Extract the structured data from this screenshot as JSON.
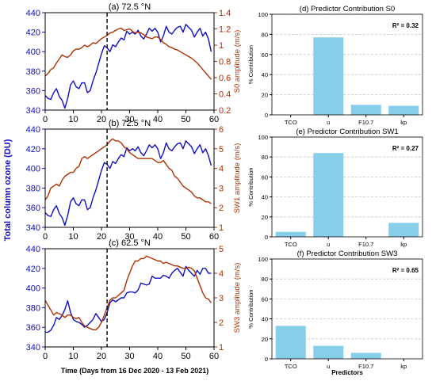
{
  "figure": {
    "ozone_axis_label": "Total column ozone (DU)",
    "time_axis_label": "Time (Days from 16 Dec 2020 - 13 Feb 2021)",
    "colors": {
      "ozone": "#1010c0",
      "wind": "#b03000",
      "bar": "#87ceeb",
      "axis_red": "#b03000",
      "axis_blue": "#1010c0"
    }
  },
  "chart_data": [
    {
      "type": "line",
      "title": "(a) 72.5 °N",
      "xlim": [
        0,
        60
      ],
      "xticks": [
        0,
        10,
        20,
        30,
        40,
        50,
        60
      ],
      "left_axis": {
        "label": "",
        "ylim": [
          340,
          440
        ],
        "ticks": [
          340,
          360,
          380,
          400,
          420,
          440
        ]
      },
      "right_axis": {
        "label": "S0 amplitude (m/s)",
        "ylim": [
          0.2,
          1.4
        ],
        "ticks": [
          0.2,
          0.4,
          0.6,
          0.8,
          1.0,
          1.2,
          1.4
        ]
      },
      "marker_line_x": 22,
      "series": [
        {
          "axis": "left",
          "color": "#1010c0",
          "x": [
            0,
            1,
            2,
            3,
            4,
            5,
            6,
            7,
            8,
            9,
            10,
            11,
            12,
            13,
            14,
            15,
            16,
            17,
            18,
            19,
            20,
            21,
            22,
            23,
            24,
            25,
            26,
            27,
            28,
            29,
            30,
            31,
            32,
            33,
            34,
            35,
            36,
            37,
            38,
            39,
            40,
            41,
            42,
            43,
            44,
            45,
            46,
            47,
            48,
            49,
            50,
            51,
            52,
            53,
            54,
            55,
            56,
            57,
            58,
            59
          ],
          "values": [
            355,
            352,
            351,
            358,
            362,
            354,
            350,
            342,
            352,
            366,
            370,
            364,
            362,
            368,
            368,
            358,
            360,
            370,
            378,
            388,
            398,
            406,
            404,
            400,
            407,
            405,
            410,
            414,
            412,
            421,
            418,
            420,
            418,
            422,
            416,
            413,
            418,
            424,
            421,
            424,
            420,
            410,
            416,
            426,
            420,
            418,
            422,
            425,
            426,
            420,
            428,
            425,
            422,
            415,
            420,
            424,
            416,
            420,
            413,
            400
          ]
        },
        {
          "axis": "right",
          "color": "#b03000",
          "x": [
            0,
            1,
            2,
            3,
            4,
            5,
            6,
            7,
            8,
            9,
            10,
            11,
            12,
            13,
            14,
            15,
            16,
            17,
            18,
            19,
            20,
            21,
            22,
            23,
            24,
            25,
            26,
            27,
            28,
            29,
            30,
            31,
            32,
            33,
            34,
            35,
            36,
            37,
            38,
            39,
            40,
            41,
            42,
            43,
            44,
            45,
            46,
            47,
            48,
            49,
            50,
            51,
            52,
            53,
            54,
            55,
            56,
            57,
            58,
            59
          ],
          "values": [
            0.62,
            0.65,
            0.7,
            0.72,
            0.78,
            0.83,
            0.88,
            0.86,
            0.85,
            0.88,
            0.93,
            0.95,
            0.95,
            0.97,
            1.0,
            0.98,
            1.0,
            1.03,
            1.02,
            1.05,
            1.08,
            1.1,
            1.12,
            1.15,
            1.16,
            1.18,
            1.2,
            1.21,
            1.18,
            1.19,
            1.2,
            1.17,
            1.15,
            1.16,
            1.15,
            1.13,
            1.1,
            1.09,
            1.08,
            1.1,
            1.1,
            1.07,
            1.03,
            1.01,
            0.98,
            0.97,
            0.95,
            0.94,
            0.92,
            0.9,
            0.88,
            0.86,
            0.84,
            0.81,
            0.78,
            0.74,
            0.7,
            0.66,
            0.62,
            0.58
          ]
        }
      ]
    },
    {
      "type": "line",
      "title": "(b) 72.5 °N",
      "xlim": [
        0,
        60
      ],
      "xticks": [
        0,
        10,
        20,
        30,
        40,
        50,
        60
      ],
      "left_axis": {
        "label": "",
        "ylim": [
          340,
          440
        ],
        "ticks": [
          340,
          360,
          380,
          400,
          420,
          440
        ]
      },
      "right_axis": {
        "label": "SW1 amplitude (m/s)",
        "ylim": [
          1,
          6
        ],
        "ticks": [
          1,
          2,
          3,
          4,
          5,
          6
        ]
      },
      "marker_line_x": 22,
      "series": [
        {
          "axis": "left",
          "color": "#1010c0",
          "x": [
            0,
            1,
            2,
            3,
            4,
            5,
            6,
            7,
            8,
            9,
            10,
            11,
            12,
            13,
            14,
            15,
            16,
            17,
            18,
            19,
            20,
            21,
            22,
            23,
            24,
            25,
            26,
            27,
            28,
            29,
            30,
            31,
            32,
            33,
            34,
            35,
            36,
            37,
            38,
            39,
            40,
            41,
            42,
            43,
            44,
            45,
            46,
            47,
            48,
            49,
            50,
            51,
            52,
            53,
            54,
            55,
            56,
            57,
            58,
            59
          ],
          "values": [
            355,
            352,
            351,
            358,
            362,
            354,
            350,
            342,
            352,
            366,
            370,
            364,
            362,
            368,
            368,
            358,
            360,
            370,
            378,
            388,
            398,
            406,
            404,
            400,
            407,
            405,
            410,
            414,
            412,
            421,
            418,
            420,
            418,
            422,
            416,
            413,
            418,
            424,
            421,
            424,
            420,
            410,
            416,
            426,
            420,
            418,
            422,
            425,
            426,
            420,
            428,
            425,
            422,
            415,
            420,
            424,
            416,
            420,
            413,
            403
          ]
        },
        {
          "axis": "right",
          "color": "#b03000",
          "x": [
            0,
            1,
            2,
            3,
            4,
            5,
            6,
            7,
            8,
            9,
            10,
            11,
            12,
            13,
            14,
            15,
            16,
            17,
            18,
            19,
            20,
            21,
            22,
            23,
            24,
            25,
            26,
            27,
            28,
            29,
            30,
            31,
            32,
            33,
            34,
            35,
            36,
            37,
            38,
            39,
            40,
            41,
            42,
            43,
            44,
            45,
            46,
            47,
            48,
            49,
            50,
            51,
            52,
            53,
            54,
            55,
            56,
            57,
            58,
            59
          ],
          "values": [
            2.4,
            2.6,
            3.0,
            3.1,
            3.2,
            3.1,
            3.4,
            3.6,
            3.7,
            3.8,
            3.8,
            4.0,
            4.1,
            4.5,
            4.6,
            4.5,
            4.6,
            4.7,
            4.8,
            4.9,
            5.0,
            5.1,
            5.2,
            5.4,
            5.5,
            5.4,
            5.4,
            5.3,
            5.1,
            5.0,
            4.8,
            4.7,
            4.6,
            4.5,
            4.5,
            4.5,
            4.5,
            4.5,
            4.5,
            4.4,
            4.3,
            4.3,
            4.4,
            4.2,
            4.0,
            3.9,
            3.6,
            3.5,
            3.3,
            3.1,
            3.0,
            2.9,
            2.8,
            2.6,
            2.5,
            2.5,
            2.4,
            2.3,
            2.3,
            2.2
          ]
        }
      ]
    },
    {
      "type": "line",
      "title": "(c) 62.5 °N",
      "xlim": [
        0,
        60
      ],
      "xticks": [
        0,
        10,
        20,
        30,
        40,
        50,
        60
      ],
      "xlabel": "Time (Days from 16 Dec 2020 - 13 Feb 2021)",
      "left_axis": {
        "label": "",
        "ylim": [
          340,
          440
        ],
        "ticks": [
          340,
          360,
          380,
          400,
          420,
          440
        ]
      },
      "right_axis": {
        "label": "SW3 amplitude (m/s)",
        "ylim": [
          1,
          5
        ],
        "ticks": [
          1,
          2,
          3,
          4,
          5
        ]
      },
      "marker_line_x": 22,
      "series": [
        {
          "axis": "left",
          "color": "#1010c0",
          "x": [
            0,
            1,
            2,
            3,
            4,
            5,
            6,
            7,
            8,
            9,
            10,
            11,
            12,
            13,
            14,
            15,
            16,
            17,
            18,
            19,
            20,
            21,
            22,
            23,
            24,
            25,
            26,
            27,
            28,
            29,
            30,
            31,
            32,
            33,
            34,
            35,
            36,
            37,
            38,
            39,
            40,
            41,
            42,
            43,
            44,
            45,
            46,
            47,
            48,
            49,
            50,
            51,
            52,
            53,
            54,
            55,
            56,
            57,
            58,
            59
          ],
          "values": [
            355,
            355,
            357,
            362,
            370,
            368,
            372,
            378,
            387,
            375,
            368,
            366,
            365,
            363,
            360,
            362,
            365,
            368,
            374,
            370,
            366,
            368,
            375,
            385,
            388,
            386,
            388,
            390,
            390,
            395,
            396,
            396,
            395,
            398,
            405,
            404,
            403,
            404,
            412,
            410,
            410,
            410,
            413,
            412,
            410,
            415,
            418,
            420,
            416,
            412,
            422,
            418,
            415,
            412,
            418,
            414,
            420,
            420,
            415,
            415
          ]
        },
        {
          "axis": "right",
          "color": "#b03000",
          "x": [
            0,
            1,
            2,
            3,
            4,
            5,
            6,
            7,
            8,
            9,
            10,
            11,
            12,
            13,
            14,
            15,
            16,
            17,
            18,
            19,
            20,
            21,
            22,
            23,
            24,
            25,
            26,
            27,
            28,
            29,
            30,
            31,
            32,
            33,
            34,
            35,
            36,
            37,
            38,
            39,
            40,
            41,
            42,
            43,
            44,
            45,
            46,
            47,
            48,
            49,
            50,
            51,
            52,
            53,
            54,
            55,
            56,
            57,
            58,
            59
          ],
          "values": [
            2.9,
            2.7,
            2.5,
            2.3,
            2.4,
            2.35,
            2.3,
            2.2,
            2.3,
            2.3,
            2.2,
            2.15,
            2.2,
            2.0,
            1.85,
            1.8,
            1.75,
            1.7,
            1.7,
            1.8,
            2.0,
            2.3,
            2.6,
            2.9,
            3.0,
            3.0,
            3.1,
            3.2,
            3.3,
            3.7,
            4.0,
            4.3,
            4.5,
            4.5,
            4.6,
            4.6,
            4.7,
            4.65,
            4.6,
            4.55,
            4.5,
            4.5,
            4.4,
            4.45,
            4.4,
            4.35,
            4.3,
            4.3,
            4.25,
            4.2,
            4.2,
            4.25,
            4.2,
            4.1,
            3.8,
            3.5,
            3.2,
            3.0,
            2.95,
            2.8
          ]
        }
      ]
    },
    {
      "type": "bar",
      "title": "(d) Predictor Contribution S0",
      "categories": [
        "TCO",
        "u",
        "F10.7",
        "kp"
      ],
      "values": [
        0,
        77,
        10,
        9
      ],
      "ylabel": "% Contribution",
      "ylim": [
        0,
        100
      ],
      "yticks": [
        0,
        20,
        40,
        60,
        80,
        100
      ],
      "annotation": "R² = 0.32",
      "grid": true
    },
    {
      "type": "bar",
      "title": "(e) Predictor Contribution SW1",
      "categories": [
        "TCO",
        "u",
        "F10.7",
        "kp"
      ],
      "values": [
        5,
        84,
        0,
        14
      ],
      "ylabel": "% Contribution",
      "ylim": [
        0,
        100
      ],
      "yticks": [
        0,
        20,
        40,
        60,
        80,
        100
      ],
      "annotation": "R² = 0.27",
      "grid": true
    },
    {
      "type": "bar",
      "title": "(f) Predictor Contribution SW3",
      "categories": [
        "TCO",
        "u",
        "F10.7",
        "kp"
      ],
      "values": [
        33,
        13,
        6,
        0
      ],
      "ylabel": "% Contribution",
      "xlabel": "Predictors",
      "ylim": [
        0,
        100
      ],
      "yticks": [
        0,
        20,
        40,
        60,
        80,
        100
      ],
      "annotation": "R² = 0.65",
      "grid": true
    }
  ]
}
